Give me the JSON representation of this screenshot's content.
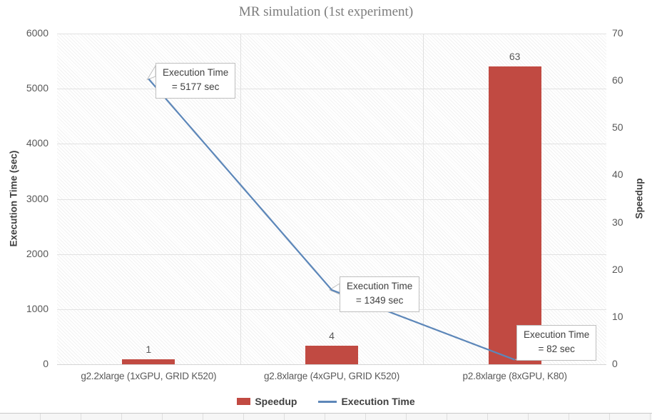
{
  "title": "MR simulation (1st experiment)",
  "chart_data": {
    "type": "combo-bar-line",
    "categories": [
      "g2.2xlarge (1xGPU, GRID K520)",
      "g2.8xlarge (4xGPU, GRID K520)",
      "p2.8xlarge (8xGPU, K80)"
    ],
    "series": [
      {
        "name": "Speedup",
        "type": "bar",
        "axis": "right",
        "color": "#c14a42",
        "values": [
          1,
          4,
          63
        ],
        "data_labels": [
          "1",
          "4",
          "63"
        ]
      },
      {
        "name": "Execution Time",
        "type": "line",
        "axis": "left",
        "color": "#5d87b9",
        "values": [
          5177,
          1349,
          82
        ]
      }
    ],
    "axes": {
      "left": {
        "title": "Execution Time (sec)",
        "min": 0,
        "max": 6000,
        "step": 1000,
        "ticks": [
          0,
          1000,
          2000,
          3000,
          4000,
          5000,
          6000
        ]
      },
      "right": {
        "title": "Speedup",
        "min": 0,
        "max": 70,
        "step": 10,
        "ticks": [
          0,
          10,
          20,
          30,
          40,
          50,
          60,
          70
        ]
      }
    },
    "annotations": [
      {
        "point": 0,
        "line1": "Execution Time",
        "line2": "= 5177 sec"
      },
      {
        "point": 1,
        "line1": "Execution Time",
        "line2": "= 1349 sec"
      },
      {
        "point": 2,
        "line1": "Execution Time",
        "line2": "= 82 sec"
      }
    ],
    "legend_position": "bottom",
    "grid": true
  },
  "colors": {
    "bar": "#c14a42",
    "line": "#5d87b9",
    "title_text": "#7c7c7c",
    "tick_text": "#595959",
    "axis_title_text": "#404040",
    "gridline": "#e2e2e2",
    "callout_border": "#bfbfbf",
    "callout_text": "#404040"
  }
}
